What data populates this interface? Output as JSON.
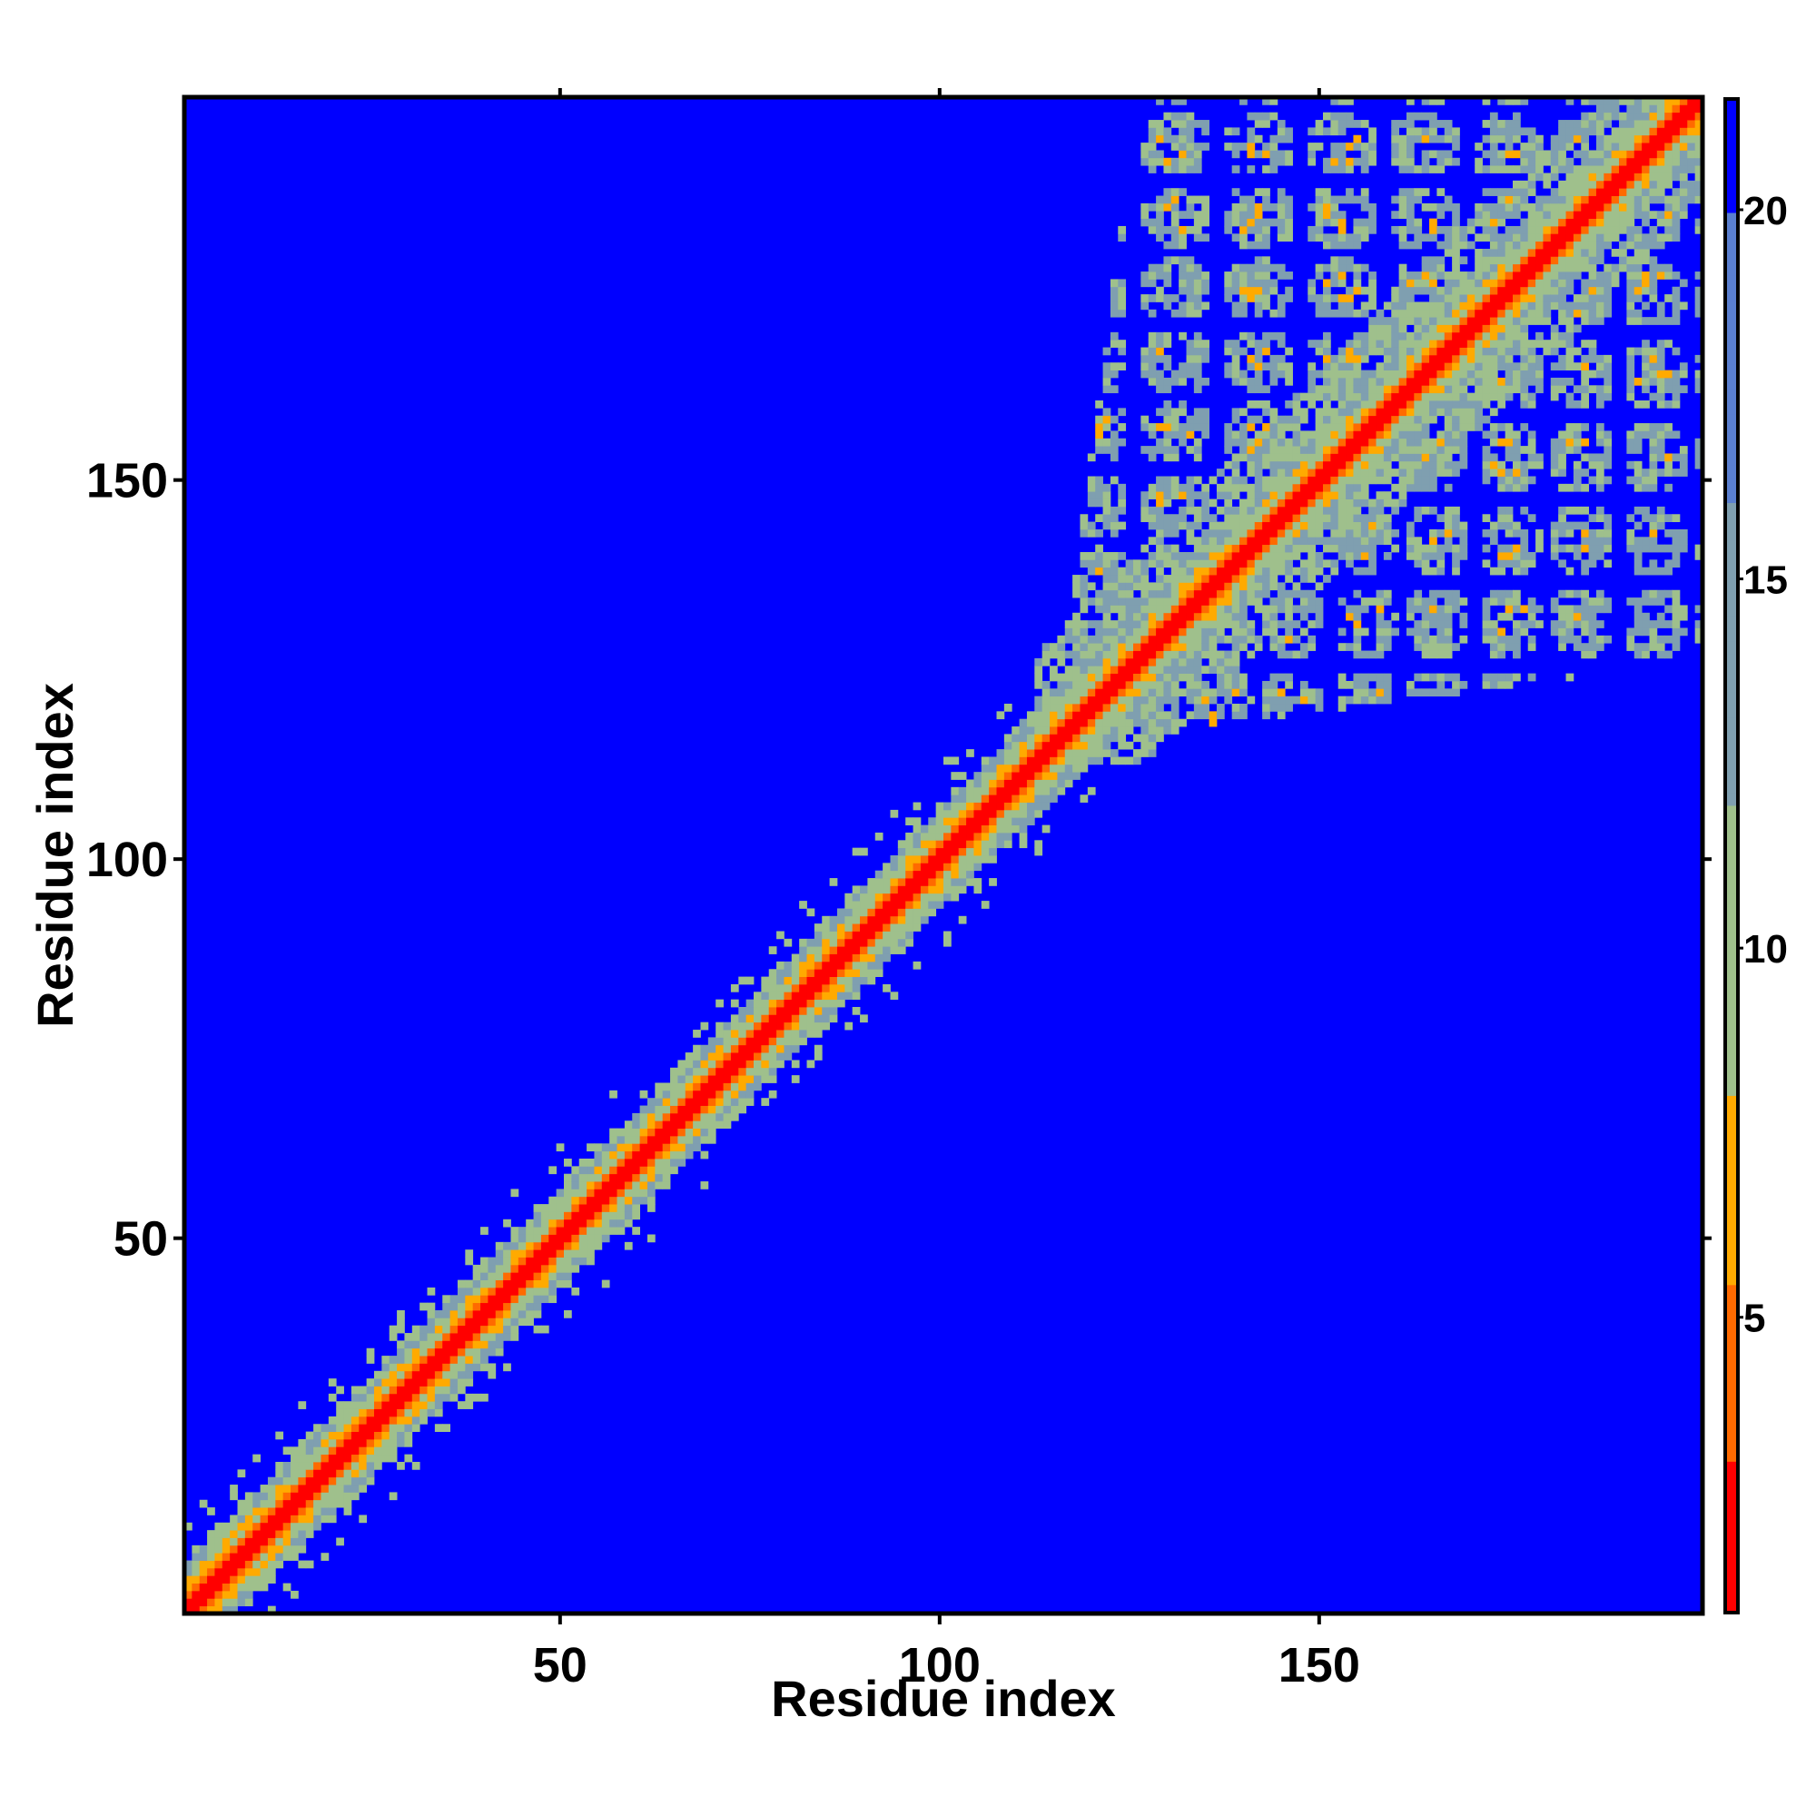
{
  "chart_data": {
    "type": "heatmap",
    "title": "",
    "xlabel": "Residue index",
    "ylabel": "Residue index",
    "n_residues": 200,
    "xlim": [
      1,
      200
    ],
    "ylim": [
      1,
      200
    ],
    "xticks": [
      50,
      100,
      150
    ],
    "yticks": [
      50,
      100,
      150
    ],
    "colorbar": {
      "ticks": [
        5,
        10,
        15,
        20
      ],
      "range": [
        1,
        21.5
      ],
      "colors": [
        "#ff0000",
        "#ff6a00",
        "#ffaa00",
        "#9fc08c",
        "#7f9fb0",
        "#5a7fcf",
        "#0000ff"
      ]
    },
    "background_value": 21,
    "features": [
      {
        "kind": "diagonal",
        "start": 1,
        "end": 200,
        "width": 8
      },
      {
        "kind": "contact-cluster",
        "residues": [
          115,
          200
        ],
        "partners": [
          122,
          200
        ]
      }
    ]
  }
}
